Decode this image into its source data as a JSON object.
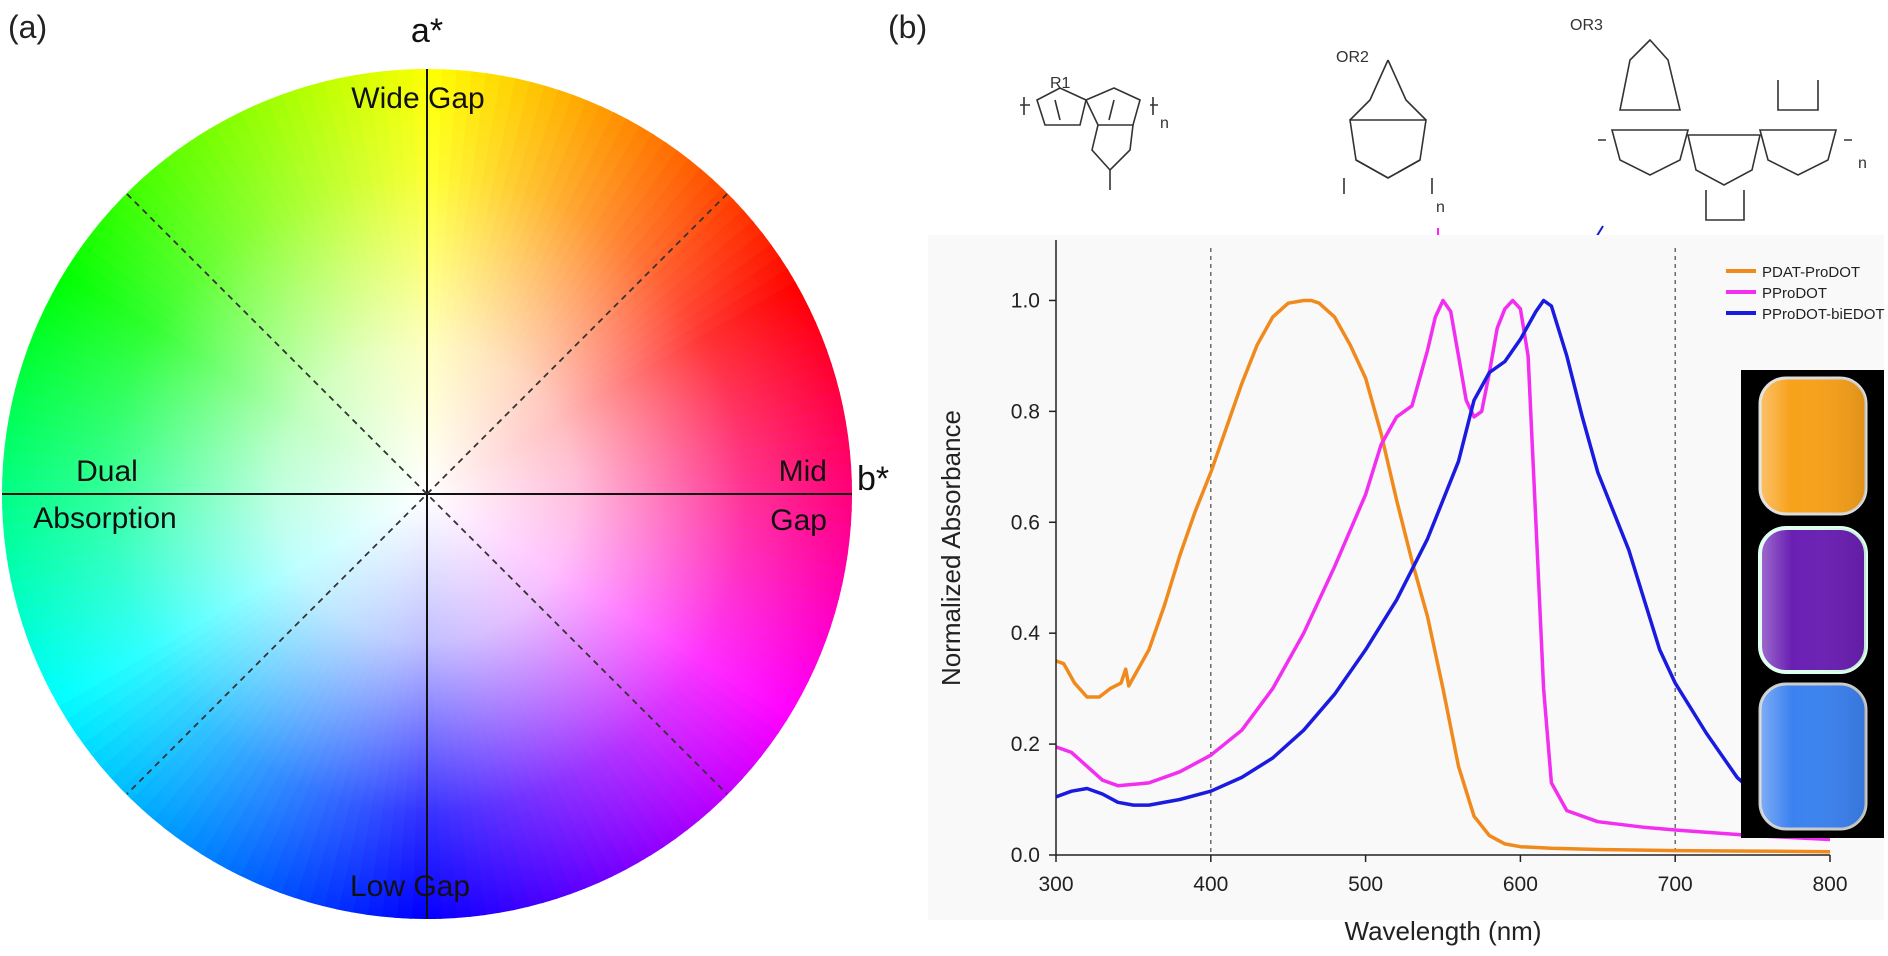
{
  "panel_a": {
    "label": "(a)",
    "axis_vertical": "a*",
    "axis_horizontal": "b*",
    "labels": {
      "top": "Wide Gap",
      "bottom": "Low Gap",
      "left_line1": "Dual",
      "left_line2": "Absorption",
      "right_line1": "Mid",
      "right_line2": "Gap"
    }
  },
  "panel_b": {
    "label": "(b)",
    "structures": [
      {
        "name": "PDAT-ProDOT",
        "substituent": "R1",
        "subscript": "n",
        "arrow_color": "#ee7f31"
      },
      {
        "name": "PProDOT",
        "substituent": "OR2",
        "subscript": "n",
        "arrow_color": "#ff22ff"
      },
      {
        "name": "PProDOT-biEDOT",
        "substituent": "OR3",
        "subscript": "n",
        "arrow_color": "#1a1acc"
      }
    ],
    "vials": [
      "#f8a11a",
      "#6a1fb3",
      "#3b82f0"
    ]
  },
  "chart_data": {
    "type": "line",
    "xlabel": "Wavelength (nm)",
    "ylabel": "Normalized Absorbance",
    "xlim": [
      300,
      800
    ],
    "ylim": [
      0.0,
      1.1
    ],
    "xticks": [
      300,
      400,
      500,
      600,
      700,
      800
    ],
    "yticks": [
      0.0,
      0.2,
      0.4,
      0.6,
      0.8,
      1.0
    ],
    "xtick_labels": [
      "300",
      "400",
      "500",
      "600",
      "700",
      "800"
    ],
    "ytick_labels": [
      "0.0",
      "0.2",
      "0.4",
      "0.6",
      "0.8",
      "1.0"
    ],
    "reference_lines_x": [
      400,
      700
    ],
    "legend_position": "top-right",
    "series": [
      {
        "name": "PDAT-ProDOT",
        "color": "#f08a1c",
        "x": [
          300,
          305,
          312,
          320,
          328,
          335,
          342,
          345,
          347,
          350,
          360,
          370,
          380,
          390,
          400,
          410,
          420,
          430,
          440,
          450,
          460,
          465,
          470,
          480,
          490,
          500,
          510,
          520,
          530,
          540,
          550,
          560,
          570,
          580,
          590,
          600,
          620,
          650,
          700,
          750,
          800
        ],
        "y": [
          0.35,
          0.345,
          0.31,
          0.285,
          0.285,
          0.3,
          0.31,
          0.335,
          0.305,
          0.32,
          0.37,
          0.45,
          0.54,
          0.62,
          0.69,
          0.77,
          0.85,
          0.92,
          0.97,
          0.995,
          1.0,
          1.0,
          0.995,
          0.97,
          0.92,
          0.86,
          0.76,
          0.64,
          0.53,
          0.43,
          0.3,
          0.16,
          0.07,
          0.035,
          0.02,
          0.015,
          0.012,
          0.01,
          0.008,
          0.007,
          0.006
        ]
      },
      {
        "name": "PProDOT",
        "color": "#f22ff0",
        "x": [
          300,
          310,
          320,
          330,
          340,
          360,
          380,
          400,
          420,
          440,
          460,
          480,
          500,
          510,
          520,
          530,
          540,
          545,
          550,
          555,
          560,
          565,
          570,
          575,
          580,
          585,
          590,
          595,
          600,
          605,
          610,
          615,
          620,
          630,
          650,
          680,
          700,
          750,
          800
        ],
        "y": [
          0.195,
          0.185,
          0.16,
          0.135,
          0.125,
          0.13,
          0.15,
          0.18,
          0.225,
          0.3,
          0.4,
          0.52,
          0.65,
          0.74,
          0.79,
          0.81,
          0.91,
          0.97,
          1.0,
          0.98,
          0.9,
          0.82,
          0.79,
          0.8,
          0.87,
          0.95,
          0.985,
          1.0,
          0.985,
          0.9,
          0.6,
          0.3,
          0.13,
          0.08,
          0.06,
          0.05,
          0.045,
          0.035,
          0.028
        ]
      },
      {
        "name": "PProDOT-biEDOT",
        "color": "#1a1ae0",
        "x": [
          300,
          310,
          320,
          330,
          340,
          350,
          360,
          380,
          400,
          420,
          440,
          460,
          480,
          500,
          520,
          540,
          560,
          570,
          580,
          590,
          600,
          610,
          615,
          620,
          630,
          640,
          650,
          660,
          670,
          680,
          690,
          700,
          720,
          740,
          760,
          780,
          800
        ],
        "y": [
          0.105,
          0.115,
          0.12,
          0.11,
          0.095,
          0.09,
          0.09,
          0.1,
          0.115,
          0.14,
          0.175,
          0.225,
          0.29,
          0.37,
          0.46,
          0.57,
          0.71,
          0.82,
          0.87,
          0.89,
          0.93,
          0.98,
          1.0,
          0.99,
          0.9,
          0.79,
          0.69,
          0.62,
          0.55,
          0.46,
          0.37,
          0.31,
          0.22,
          0.14,
          0.09,
          0.06,
          0.04
        ]
      }
    ]
  }
}
